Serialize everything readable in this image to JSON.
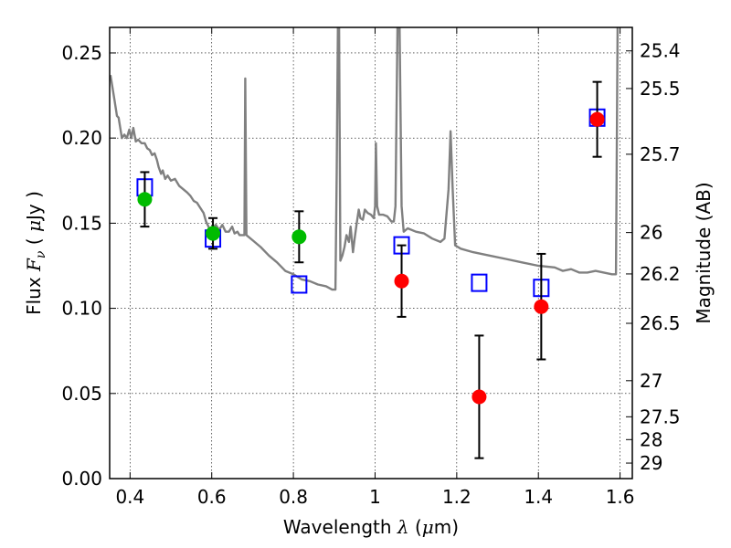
{
  "chart_data": {
    "type": "scatter",
    "xlabel": {
      "prefix": "Wavelength  ",
      "symbol": "λ",
      "suffix": " (",
      "mu": "μ",
      "unit_tail": "m)"
    },
    "ylabel": {
      "prefix": "Flux  ",
      "symbol": "F",
      "subscript": "ν",
      "open": "  ( ",
      "mu": "μ",
      "tail": "Jy )"
    },
    "y2label": "Magnitude (AB)",
    "xlim": [
      0.35,
      1.63
    ],
    "ylim": [
      0.0,
      0.265
    ],
    "grid": true,
    "x_ticks": [
      {
        "value": 0.4,
        "label": "0.4"
      },
      {
        "value": 0.6,
        "label": "0.6"
      },
      {
        "value": 0.8,
        "label": "0.8"
      },
      {
        "value": 1.0,
        "label": "1"
      },
      {
        "value": 1.2,
        "label": "1.2"
      },
      {
        "value": 1.4,
        "label": "1.4"
      },
      {
        "value": 1.6,
        "label": "1.6"
      }
    ],
    "y_ticks": [
      {
        "value": 0.0,
        "label": "0.00"
      },
      {
        "value": 0.05,
        "label": "0.05"
      },
      {
        "value": 0.1,
        "label": "0.10"
      },
      {
        "value": 0.15,
        "label": "0.15"
      },
      {
        "value": 0.2,
        "label": "0.20"
      },
      {
        "value": 0.25,
        "label": "0.25"
      }
    ],
    "mag_ticks": [
      {
        "label": "25.4",
        "flux": 0.2512
      },
      {
        "label": "25.5",
        "flux": 0.2291
      },
      {
        "label": "25.7",
        "flux": 0.1905
      },
      {
        "label": "26",
        "flux": 0.1445
      },
      {
        "label": "26.2",
        "flux": 0.1202
      },
      {
        "label": "26.5",
        "flux": 0.0912
      },
      {
        "label": "27",
        "flux": 0.0575
      },
      {
        "label": "27.5",
        "flux": 0.0363
      },
      {
        "label": "28",
        "flux": 0.0229
      },
      {
        "label": "29",
        "flux": 0.0091
      }
    ],
    "series": [
      {
        "marker": "line",
        "color": "#808080",
        "points": [
          [
            0.352,
            0.237
          ],
          [
            0.362,
            0.222
          ],
          [
            0.368,
            0.213
          ],
          [
            0.372,
            0.212
          ],
          [
            0.38,
            0.2
          ],
          [
            0.386,
            0.202
          ],
          [
            0.392,
            0.2
          ],
          [
            0.398,
            0.205
          ],
          [
            0.403,
            0.2
          ],
          [
            0.408,
            0.206
          ],
          [
            0.414,
            0.198
          ],
          [
            0.42,
            0.199
          ],
          [
            0.428,
            0.197
          ],
          [
            0.436,
            0.197
          ],
          [
            0.442,
            0.194
          ],
          [
            0.448,
            0.193
          ],
          [
            0.454,
            0.19
          ],
          [
            0.46,
            0.191
          ],
          [
            0.466,
            0.187
          ],
          [
            0.47,
            0.183
          ],
          [
            0.476,
            0.179
          ],
          [
            0.48,
            0.181
          ],
          [
            0.486,
            0.176
          ],
          [
            0.492,
            0.178
          ],
          [
            0.5,
            0.175
          ],
          [
            0.51,
            0.176
          ],
          [
            0.52,
            0.172
          ],
          [
            0.53,
            0.17
          ],
          [
            0.54,
            0.168
          ],
          [
            0.548,
            0.166
          ],
          [
            0.556,
            0.163
          ],
          [
            0.564,
            0.162
          ],
          [
            0.572,
            0.159
          ],
          [
            0.58,
            0.156
          ],
          [
            0.586,
            0.151
          ],
          [
            0.594,
            0.147
          ],
          [
            0.602,
            0.147
          ],
          [
            0.61,
            0.149
          ],
          [
            0.618,
            0.146
          ],
          [
            0.626,
            0.149
          ],
          [
            0.634,
            0.145
          ],
          [
            0.642,
            0.145
          ],
          [
            0.65,
            0.148
          ],
          [
            0.656,
            0.144
          ],
          [
            0.663,
            0.145
          ],
          [
            0.668,
            0.143
          ],
          [
            0.68,
            0.143
          ],
          [
            0.682,
            0.235
          ],
          [
            0.685,
            0.143
          ],
          [
            0.7,
            0.14
          ],
          [
            0.72,
            0.136
          ],
          [
            0.74,
            0.131
          ],
          [
            0.76,
            0.127
          ],
          [
            0.78,
            0.122
          ],
          [
            0.8,
            0.12
          ],
          [
            0.82,
            0.117
          ],
          [
            0.84,
            0.116
          ],
          [
            0.86,
            0.114
          ],
          [
            0.88,
            0.113
          ],
          [
            0.895,
            0.111
          ],
          [
            0.903,
            0.111
          ],
          [
            0.906,
            0.18
          ],
          [
            0.909,
            0.265
          ],
          [
            0.912,
            0.265
          ],
          [
            0.915,
            0.128
          ],
          [
            0.92,
            0.131
          ],
          [
            0.925,
            0.136
          ],
          [
            0.93,
            0.143
          ],
          [
            0.936,
            0.139
          ],
          [
            0.94,
            0.148
          ],
          [
            0.946,
            0.133
          ],
          [
            0.95,
            0.141
          ],
          [
            0.955,
            0.15
          ],
          [
            0.96,
            0.158
          ],
          [
            0.964,
            0.153
          ],
          [
            0.97,
            0.152
          ],
          [
            0.975,
            0.158
          ],
          [
            0.982,
            0.156
          ],
          [
            0.99,
            0.155
          ],
          [
            0.997,
            0.153
          ],
          [
            1.0,
            0.16
          ],
          [
            1.002,
            0.197
          ],
          [
            1.005,
            0.16
          ],
          [
            1.01,
            0.155
          ],
          [
            1.02,
            0.155
          ],
          [
            1.03,
            0.154
          ],
          [
            1.04,
            0.151
          ],
          [
            1.046,
            0.151
          ],
          [
            1.05,
            0.16
          ],
          [
            1.055,
            0.265
          ],
          [
            1.06,
            0.265
          ],
          [
            1.065,
            0.16
          ],
          [
            1.07,
            0.145
          ],
          [
            1.08,
            0.147
          ],
          [
            1.1,
            0.145
          ],
          [
            1.12,
            0.144
          ],
          [
            1.14,
            0.141
          ],
          [
            1.16,
            0.139
          ],
          [
            1.17,
            0.141
          ],
          [
            1.18,
            0.17
          ],
          [
            1.185,
            0.204
          ],
          [
            1.19,
            0.17
          ],
          [
            1.196,
            0.137
          ],
          [
            1.21,
            0.135
          ],
          [
            1.24,
            0.133
          ],
          [
            1.28,
            0.131
          ],
          [
            1.32,
            0.129
          ],
          [
            1.36,
            0.127
          ],
          [
            1.4,
            0.125
          ],
          [
            1.44,
            0.124
          ],
          [
            1.46,
            0.122
          ],
          [
            1.48,
            0.123
          ],
          [
            1.5,
            0.121
          ],
          [
            1.52,
            0.121
          ],
          [
            1.54,
            0.122
          ],
          [
            1.56,
            0.121
          ],
          [
            1.58,
            0.12
          ],
          [
            1.59,
            0.12
          ],
          [
            1.594,
            0.265
          ]
        ]
      },
      {
        "marker": "square",
        "color": "#0000ff",
        "points": [
          [
            0.436,
            0.171
          ],
          [
            0.603,
            0.141
          ],
          [
            0.814,
            0.114
          ],
          [
            1.065,
            0.137
          ],
          [
            1.255,
            0.115
          ],
          [
            1.407,
            0.112
          ],
          [
            1.544,
            0.212
          ]
        ]
      },
      {
        "marker": "circle",
        "color": "#00bb00",
        "points": [
          {
            "x": 0.436,
            "y": 0.164,
            "err": 0.016
          },
          {
            "x": 0.603,
            "y": 0.144,
            "err": 0.009
          },
          {
            "x": 0.814,
            "y": 0.142,
            "err": 0.015
          }
        ]
      },
      {
        "marker": "circle",
        "color": "#ff0000",
        "points": [
          {
            "x": 1.065,
            "y": 0.116,
            "err": 0.021
          },
          {
            "x": 1.255,
            "y": 0.048,
            "err": 0.036
          },
          {
            "x": 1.407,
            "y": 0.101,
            "err": 0.031
          },
          {
            "x": 1.544,
            "y": 0.211,
            "err": 0.022
          }
        ]
      }
    ]
  }
}
